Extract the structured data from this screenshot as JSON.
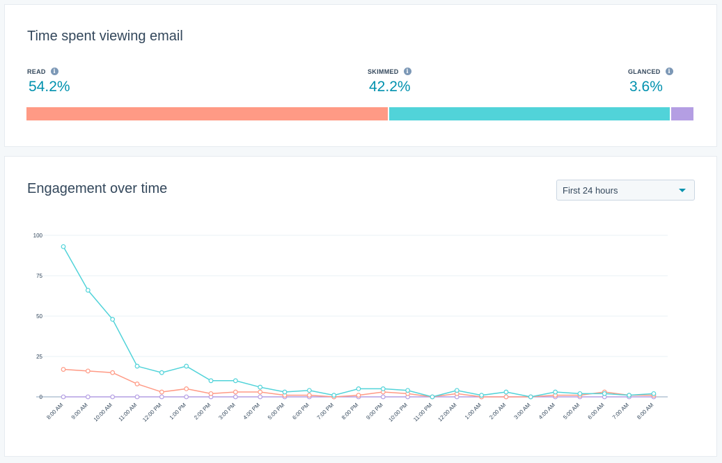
{
  "time_card": {
    "title": "Time spent viewing email",
    "metrics": [
      {
        "label": "READ",
        "value": "54.2%",
        "fraction": 0.542,
        "color": "#ff9a85"
      },
      {
        "label": "SKIMMED",
        "value": "42.2%",
        "fraction": 0.422,
        "color": "#51d3d9"
      },
      {
        "label": "GLANCED",
        "value": "3.6%",
        "fraction": 0.036,
        "color": "#b49ee3"
      }
    ]
  },
  "engagement_card": {
    "title": "Engagement over time",
    "range_dropdown": {
      "selected": "First 24 hours"
    }
  },
  "chart_data": {
    "type": "line",
    "title": "",
    "xlabel": "",
    "ylabel": "",
    "ylim": [
      0,
      100
    ],
    "yticks": [
      0,
      25,
      50,
      75,
      100
    ],
    "grid": true,
    "categories": [
      "8:00 AM",
      "9:00 AM",
      "10:00 AM",
      "11:00 AM",
      "12:00 PM",
      "1:00 PM",
      "2:00 PM",
      "3:00 PM",
      "4:00 PM",
      "5:00 PM",
      "6:00 PM",
      "7:00 PM",
      "8:00 PM",
      "9:00 PM",
      "10:00 PM",
      "11:00 PM",
      "12:00 AM",
      "1:00 AM",
      "2:00 AM",
      "3:00 AM",
      "4:00 AM",
      "5:00 AM",
      "6:00 AM",
      "7:00 AM",
      "8:00 AM"
    ],
    "series": [
      {
        "color": "#ff9a85",
        "values": [
          17,
          16,
          15,
          8,
          3,
          5,
          2,
          3,
          3,
          1,
          1,
          0,
          1,
          3,
          2,
          0,
          2,
          0,
          0,
          0,
          1,
          1,
          3,
          1,
          1
        ]
      },
      {
        "color": "#51d3d9",
        "values": [
          93,
          66,
          48,
          19,
          15,
          19,
          10,
          10,
          6,
          3,
          4,
          1,
          5,
          5,
          4,
          0,
          4,
          1,
          3,
          0,
          3,
          2,
          2,
          1,
          2
        ]
      },
      {
        "color": "#b49ee3",
        "values": [
          0,
          0,
          0,
          0,
          0,
          0,
          0,
          0,
          0,
          0,
          0,
          0,
          0,
          0,
          0,
          0,
          0,
          0,
          0,
          0,
          0,
          0,
          0,
          0,
          0
        ]
      }
    ]
  }
}
